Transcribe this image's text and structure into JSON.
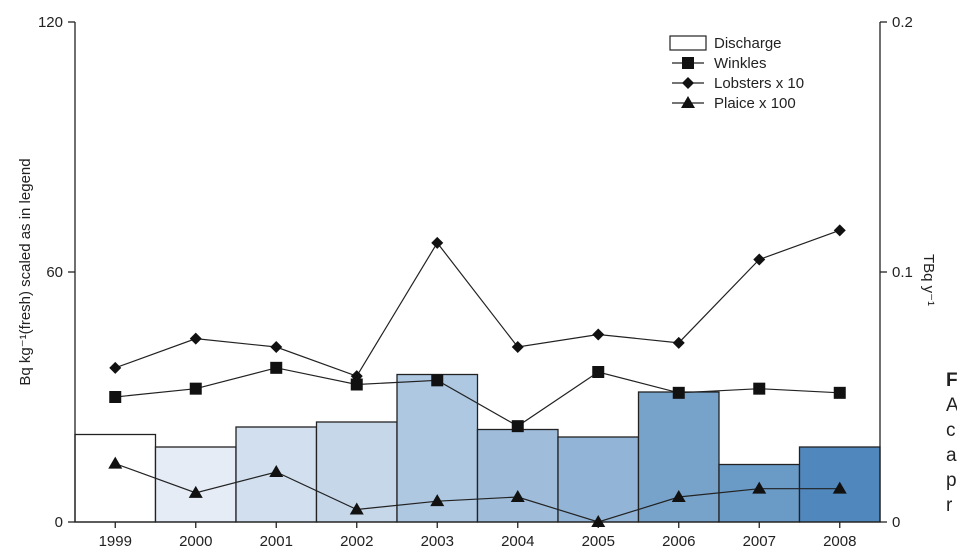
{
  "chart_data": {
    "type": "bar",
    "categories": [
      "1999",
      "2000",
      "2001",
      "2002",
      "2003",
      "2004",
      "2005",
      "2006",
      "2007",
      "2008"
    ],
    "ylabel": "Bq kg⁻¹(fresh) scaled as in legend",
    "y2label": "TBq y⁻¹",
    "ylim": [
      0,
      120
    ],
    "y2lim": [
      0,
      0.2
    ],
    "yticks": [
      "0",
      "60",
      "120"
    ],
    "y2ticks": [
      "0",
      "0.1",
      "0.2"
    ],
    "legend_position": "top-right",
    "bars": {
      "name": "Discharge",
      "axis": "right",
      "values": [
        0.035,
        0.03,
        0.038,
        0.04,
        0.059,
        0.037,
        0.034,
        0.052,
        0.023,
        0.03
      ],
      "colors": [
        "#ffffff",
        "#e5ecf6",
        "#d1dfee",
        "#c6d7ea",
        "#aec8e2",
        "#9fbddb",
        "#92b4d6",
        "#77a3cb",
        "#6a9ac6",
        "#5088bd"
      ]
    },
    "series": [
      {
        "name": "Winkles",
        "marker": "square",
        "values": [
          30,
          32,
          37,
          33,
          34,
          23,
          36,
          31,
          32,
          31
        ]
      },
      {
        "name": "Lobsters x 10",
        "marker": "diamond",
        "values": [
          37,
          44,
          42,
          35,
          67,
          42,
          45,
          43,
          63,
          70
        ]
      },
      {
        "name": "Plaice x 100",
        "marker": "triangle",
        "values": [
          14,
          7,
          12,
          3,
          5,
          6,
          0,
          6,
          8,
          8
        ]
      }
    ]
  },
  "side_text": {
    "line1": "F",
    "line2": "A",
    "line3": "c",
    "line4": "a",
    "line5": "p",
    "line6": "r"
  }
}
